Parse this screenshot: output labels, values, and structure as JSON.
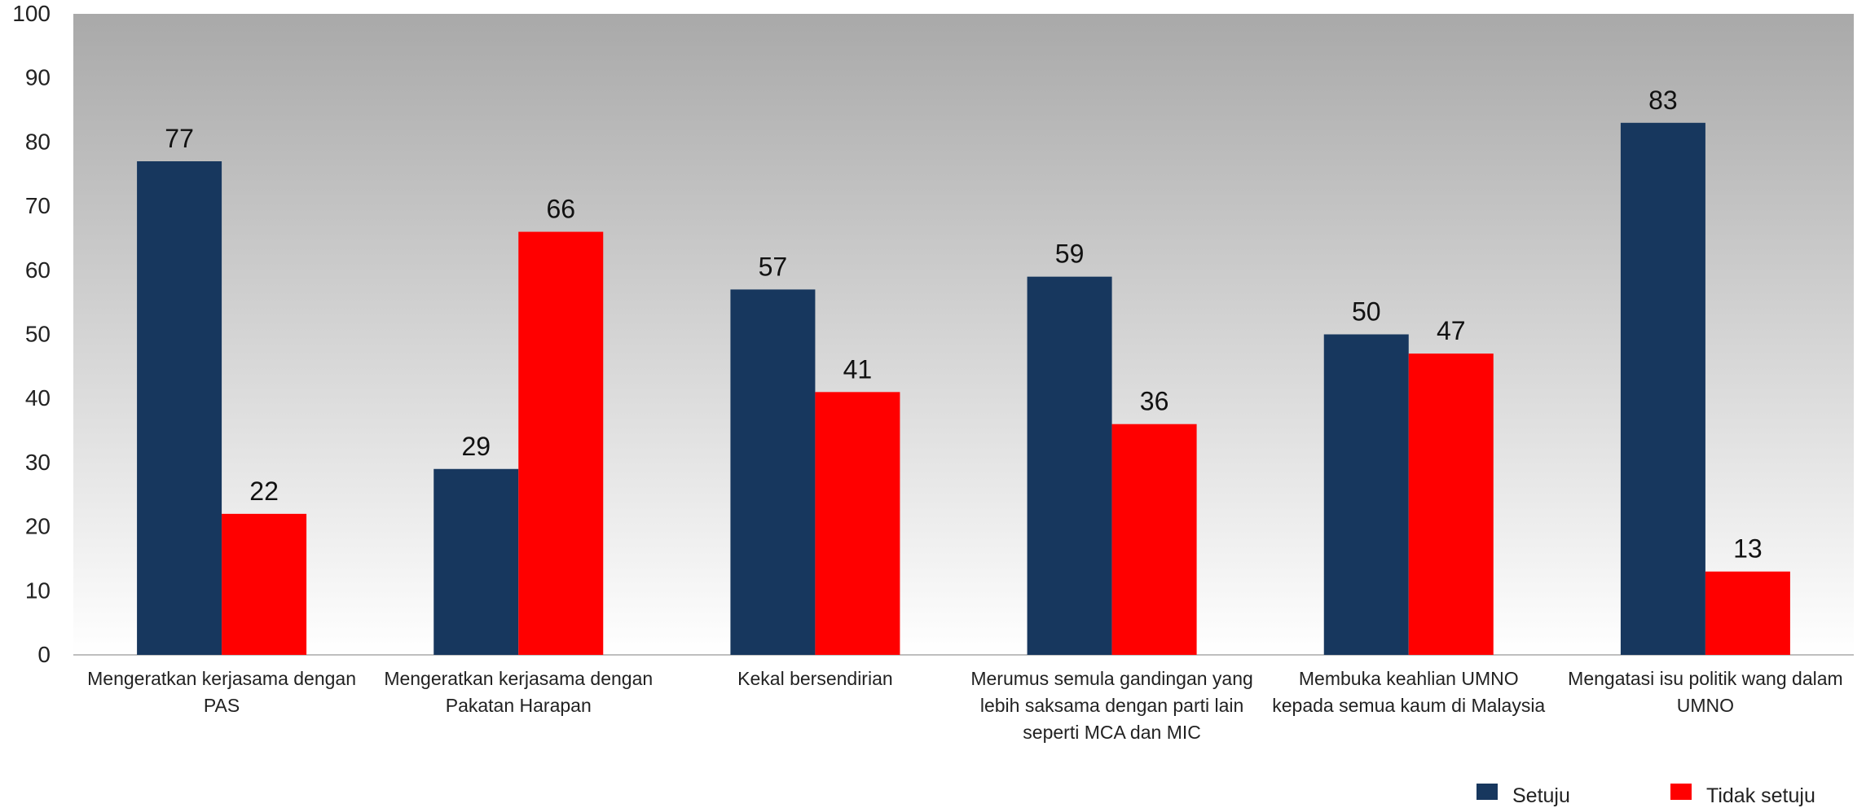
{
  "chart_data": {
    "type": "bar",
    "categories": [
      [
        "Mengeratkan kerjasama dengan",
        "PAS"
      ],
      [
        "Mengeratkan kerjasama dengan",
        "Pakatan Harapan"
      ],
      [
        "Kekal bersendirian"
      ],
      [
        "Merumus semula gandingan yang",
        "lebih saksama dengan parti lain",
        "seperti MCA dan MIC"
      ],
      [
        "Membuka keahlian UMNO",
        "kepada semua kaum di Malaysia"
      ],
      [
        "Mengatasi isu politik wang dalam",
        "UMNO"
      ]
    ],
    "series": [
      {
        "name": "Setuju",
        "color": "#17375e",
        "values": [
          77,
          29,
          57,
          59,
          50,
          83
        ]
      },
      {
        "name": "Tidak setuju",
        "color": "#ff0000",
        "values": [
          22,
          66,
          41,
          36,
          47,
          13
        ]
      }
    ],
    "ylim": [
      0,
      100
    ],
    "yticks": [
      0,
      10,
      20,
      30,
      40,
      50,
      60,
      70,
      80,
      90,
      100
    ],
    "grid": false,
    "legend_position": "bottom-right",
    "background": "gradient gray-to-white",
    "title": "",
    "xlabel": "",
    "ylabel": ""
  }
}
